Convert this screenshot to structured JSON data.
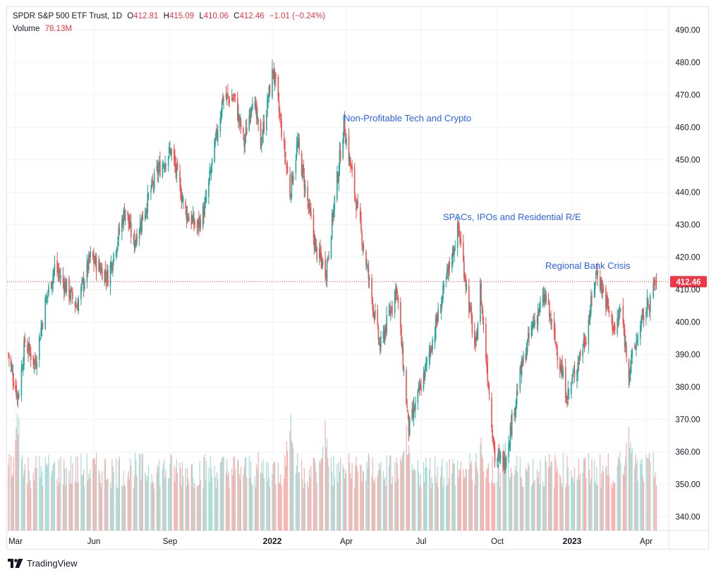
{
  "legend": {
    "symbol": "SPDR S&P 500 ETF Trust, 1D",
    "o_label": "O",
    "o_value": "412.81",
    "h_label": "H",
    "h_value": "415.09",
    "l_label": "L",
    "l_value": "410.06",
    "c_label": "C",
    "c_value": "412.46",
    "change": "−1.01 (−0.24%)",
    "volume_label": "Volume",
    "volume_value": "78.13M"
  },
  "branding": {
    "text": "TradingView",
    "icon": "tradingview-logo-icon"
  },
  "colors": {
    "up": "#26a69a",
    "down": "#ef5350",
    "up_volume": "#a8dbd5",
    "down_volume": "#f7b0ae",
    "annotation": "#2962ff",
    "last_price": "#f23645",
    "grid": "#f0f3fa"
  },
  "chart_data": {
    "type": "candlestick",
    "symbol": "SPDR S&P 500 ETF Trust",
    "interval": "1D",
    "y_axis": {
      "position": "right",
      "ylim": [
        335,
        493
      ],
      "ticks": [
        "340.00",
        "350.00",
        "360.00",
        "370.00",
        "380.00",
        "390.00",
        "400.00",
        "410.00",
        "420.00",
        "430.00",
        "440.00",
        "450.00",
        "460.00",
        "470.00",
        "480.00",
        "490.00"
      ]
    },
    "x_axis": {
      "ticks": [
        {
          "label": "Mar",
          "date": "2021-03-01",
          "bold": false
        },
        {
          "label": "Jun",
          "date": "2021-06-01",
          "bold": false
        },
        {
          "label": "Sep",
          "date": "2021-09-01",
          "bold": false
        },
        {
          "label": "2022",
          "date": "2022-01-03",
          "bold": true
        },
        {
          "label": "Apr",
          "date": "2022-04-01",
          "bold": false
        },
        {
          "label": "Jul",
          "date": "2022-07-01",
          "bold": false
        },
        {
          "label": "Oct",
          "date": "2022-10-03",
          "bold": false
        },
        {
          "label": "2023",
          "date": "2023-01-03",
          "bold": true
        },
        {
          "label": "Apr",
          "date": "2023-04-03",
          "bold": false
        }
      ]
    },
    "last_price": {
      "value": 412.46,
      "label": "412.46"
    },
    "grid": true,
    "annotations": [
      {
        "text": "Non-Profitable Tech and Crypto",
        "date": "2022-03-29",
        "price": 463
      },
      {
        "text": "SPACs, IPOs and Residential R/E",
        "date": "2022-08-16",
        "price": 432.5
      },
      {
        "text": "Regional Bank Crisis",
        "date": "2023-02-02",
        "price": 417.5
      }
    ],
    "close_path": [
      {
        "date": "2021-02-18",
        "close": 390
      },
      {
        "date": "2021-03-04",
        "close": 377
      },
      {
        "date": "2021-03-12",
        "close": 394
      },
      {
        "date": "2021-03-24",
        "close": 387
      },
      {
        "date": "2021-04-05",
        "close": 406
      },
      {
        "date": "2021-04-16",
        "close": 417
      },
      {
        "date": "2021-05-12",
        "close": 405
      },
      {
        "date": "2021-05-28",
        "close": 420
      },
      {
        "date": "2021-06-18",
        "close": 414
      },
      {
        "date": "2021-07-09",
        "close": 435
      },
      {
        "date": "2021-07-19",
        "close": 424
      },
      {
        "date": "2021-08-16",
        "close": 446
      },
      {
        "date": "2021-09-02",
        "close": 453
      },
      {
        "date": "2021-09-20",
        "close": 434
      },
      {
        "date": "2021-10-04",
        "close": 429
      },
      {
        "date": "2021-10-13",
        "close": 435
      },
      {
        "date": "2021-11-04",
        "close": 469
      },
      {
        "date": "2021-11-18",
        "close": 469
      },
      {
        "date": "2021-11-30",
        "close": 455
      },
      {
        "date": "2021-12-10",
        "close": 470
      },
      {
        "date": "2021-12-20",
        "close": 455
      },
      {
        "date": "2022-01-04",
        "close": 478
      },
      {
        "date": "2022-01-24",
        "close": 440
      },
      {
        "date": "2022-02-02",
        "close": 455
      },
      {
        "date": "2022-02-24",
        "close": 422
      },
      {
        "date": "2022-03-08",
        "close": 416
      },
      {
        "date": "2022-03-29",
        "close": 461
      },
      {
        "date": "2022-04-11",
        "close": 440
      },
      {
        "date": "2022-05-12",
        "close": 392
      },
      {
        "date": "2022-06-01",
        "close": 411
      },
      {
        "date": "2022-06-16",
        "close": 367
      },
      {
        "date": "2022-07-06",
        "close": 385
      },
      {
        "date": "2022-08-16",
        "close": 429
      },
      {
        "date": "2022-09-06",
        "close": 391
      },
      {
        "date": "2022-09-12",
        "close": 410
      },
      {
        "date": "2022-09-30",
        "close": 358
      },
      {
        "date": "2022-10-12",
        "close": 357
      },
      {
        "date": "2022-11-01",
        "close": 385
      },
      {
        "date": "2022-11-15",
        "close": 399
      },
      {
        "date": "2022-12-01",
        "close": 408
      },
      {
        "date": "2022-12-28",
        "close": 377
      },
      {
        "date": "2023-01-20",
        "close": 396
      },
      {
        "date": "2023-02-02",
        "close": 416
      },
      {
        "date": "2023-02-24",
        "close": 397
      },
      {
        "date": "2023-03-03",
        "close": 404
      },
      {
        "date": "2023-03-13",
        "close": 385
      },
      {
        "date": "2023-03-24",
        "close": 396
      },
      {
        "date": "2023-04-13",
        "close": 412.46
      }
    ],
    "volume": {
      "axis": "overlay, no scale shown",
      "last": "78.13M",
      "spikes": [
        {
          "date": "2021-03-04",
          "relative": 0.95
        },
        {
          "date": "2022-01-24",
          "relative": 1.0
        },
        {
          "date": "2022-03-07",
          "relative": 0.85
        },
        {
          "date": "2022-06-13",
          "relative": 0.8
        },
        {
          "date": "2022-09-13",
          "relative": 0.7
        },
        {
          "date": "2022-10-13",
          "relative": 0.75
        },
        {
          "date": "2023-03-13",
          "relative": 0.9
        }
      ]
    }
  }
}
